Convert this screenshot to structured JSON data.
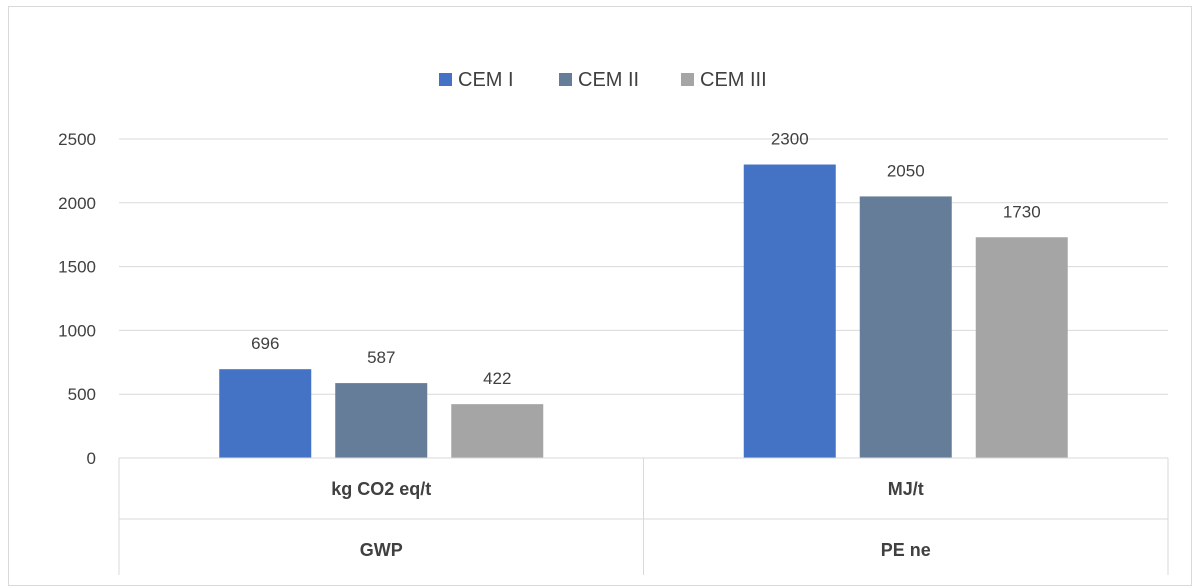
{
  "chart_data": {
    "type": "bar",
    "categories": [
      {
        "unit": "kg CO2 eq/t",
        "group": "GWP"
      },
      {
        "unit": "MJ/t",
        "group": "PE ne"
      }
    ],
    "series": [
      {
        "name": "CEM I",
        "color": "#4472c4",
        "values": [
          696,
          2300
        ]
      },
      {
        "name": "CEM II",
        "color": "#657d99",
        "values": [
          587,
          2050
        ]
      },
      {
        "name": "CEM III",
        "color": "#a5a5a5",
        "values": [
          422,
          1730
        ]
      }
    ],
    "ylim": [
      0,
      2500
    ],
    "yticks": [
      0,
      500,
      1000,
      1500,
      2000,
      2500
    ],
    "grid": true,
    "legend": "top-center",
    "data_labels": true
  }
}
